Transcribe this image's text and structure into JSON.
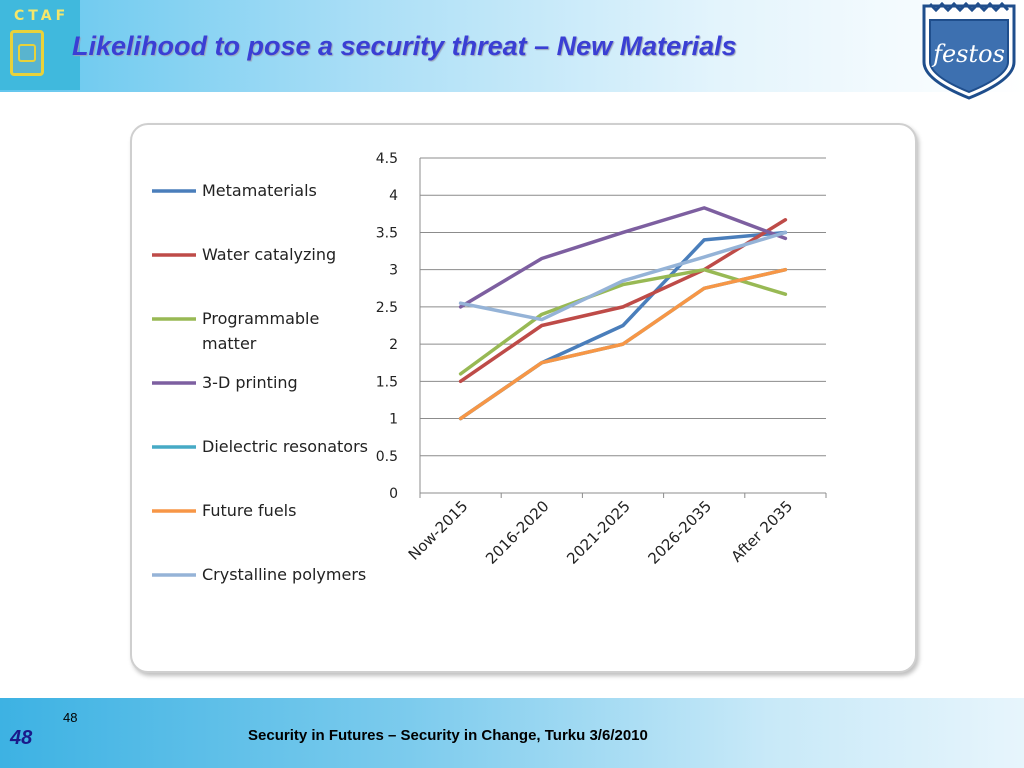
{
  "header": {
    "title": "Likelihood to pose a security threat – New Materials",
    "logo_left_text": "CTAF",
    "logo_right_text": "festos"
  },
  "chart_data": {
    "type": "line",
    "title": "",
    "xlabel": "",
    "ylabel": "",
    "categories": [
      "Now-2015",
      "2016-2020",
      "2021-2025",
      "2026-2035",
      "After 2035"
    ],
    "ylim": [
      0,
      4.5
    ],
    "yticks": [
      "0",
      "0.5",
      "1",
      "1.5",
      "2",
      "2.5",
      "3",
      "3.5",
      "4",
      "4.5"
    ],
    "grid": true,
    "legend_position": "left",
    "series": [
      {
        "name": "Metamaterials",
        "color": "#4a7ebb",
        "values": [
          1.0,
          1.75,
          2.25,
          3.4,
          3.5
        ]
      },
      {
        "name": "Water catalyzing",
        "color": "#be4b48",
        "values": [
          1.5,
          2.25,
          2.5,
          3.0,
          3.67
        ]
      },
      {
        "name": "Programmable matter",
        "color": "#98b954",
        "values": [
          1.6,
          2.4,
          2.8,
          3.0,
          2.67
        ]
      },
      {
        "name": "3-D printing",
        "color": "#7d5fa0",
        "values": [
          2.5,
          3.15,
          3.5,
          3.83,
          3.42
        ]
      },
      {
        "name": "Dielectric resonators",
        "color": "#46aac5",
        "values": [
          1.0,
          1.75,
          2.0,
          2.75,
          3.0
        ]
      },
      {
        "name": "Future fuels",
        "color": "#f79646",
        "values": [
          1.0,
          1.75,
          2.0,
          2.75,
          3.0
        ]
      },
      {
        "name": "Crystalline polymers",
        "color": "#95b3d7",
        "values": [
          2.55,
          2.33,
          2.85,
          3.17,
          3.5
        ]
      }
    ]
  },
  "footer": {
    "page_number": "48",
    "page_number_small": "48",
    "text": "Security in Futures – Security in Change, Turku 3/6/2010"
  }
}
